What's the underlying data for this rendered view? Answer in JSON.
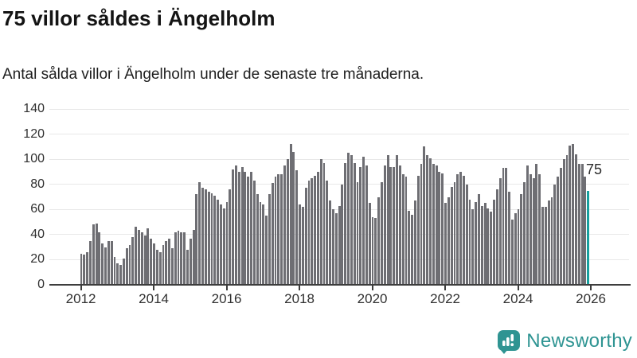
{
  "header": {
    "title": "75 villor såldes i Ängelholm",
    "subtitle": "Antal sålda villor i Ängelholm under de senaste tre månaderna."
  },
  "chart_data": {
    "type": "bar",
    "title": "75 villor såldes i Ängelholm",
    "subtitle": "Antal sålda villor i Ängelholm under de senaste tre månaderna.",
    "ylabel": "Antal sålda villor",
    "xlabel": "",
    "x_start": "2012-01",
    "x_end": "2025-12",
    "x_frequency": "monthly",
    "ylim": [
      0,
      140
    ],
    "yticks": [
      0,
      20,
      40,
      60,
      80,
      100,
      120,
      140
    ],
    "xticks": [
      2012,
      2014,
      2016,
      2018,
      2020,
      2022,
      2024,
      2026
    ],
    "grid": "horizontal",
    "bar_color": "#6e6e73",
    "highlight": {
      "index": 167,
      "value": 75,
      "label": "75",
      "color": "#17a09e"
    },
    "values": [
      25,
      24,
      26,
      35,
      48,
      49,
      42,
      33,
      30,
      35,
      35,
      22,
      17,
      16,
      21,
      29,
      32,
      38,
      46,
      44,
      42,
      39,
      45,
      37,
      33,
      28,
      26,
      32,
      35,
      37,
      29,
      42,
      43,
      42,
      42,
      28,
      37,
      44,
      72,
      82,
      77,
      76,
      74,
      73,
      71,
      68,
      64,
      61,
      66,
      76,
      92,
      95,
      90,
      94,
      90,
      86,
      90,
      83,
      72,
      66,
      64,
      55,
      72,
      81,
      86,
      88,
      88,
      95,
      100,
      112,
      106,
      91,
      64,
      62,
      77,
      83,
      85,
      87,
      90,
      100,
      97,
      83,
      67,
      60,
      57,
      63,
      80,
      97,
      105,
      103,
      97,
      82,
      94,
      102,
      95,
      65,
      54,
      53,
      70,
      82,
      95,
      103,
      94,
      94,
      103,
      95,
      88,
      86,
      59,
      56,
      67,
      87,
      96,
      110,
      103,
      101,
      96,
      95,
      90,
      89,
      65,
      70,
      78,
      82,
      88,
      90,
      87,
      80,
      68,
      60,
      66,
      72,
      63,
      65,
      61,
      58,
      68,
      76,
      85,
      93,
      93,
      74,
      52,
      57,
      60,
      72,
      82,
      95,
      88,
      85,
      96,
      88,
      62,
      62,
      67,
      70,
      80,
      86,
      93,
      100,
      103,
      111,
      112,
      104,
      96,
      96,
      86,
      75
    ]
  },
  "annotation": {
    "last_value_label": "75"
  },
  "logo": {
    "text": "Newsworthy",
    "icon": "newsworthy-chart-bubble-icon",
    "color": "#2e9492"
  },
  "colors": {
    "bar": "#6e6e73",
    "highlight": "#17a09e",
    "gridline": "#e8e8e8",
    "axis": "#3d3d3d",
    "text": "#141414",
    "logo": "#2e9492",
    "background": "#ffffff"
  }
}
